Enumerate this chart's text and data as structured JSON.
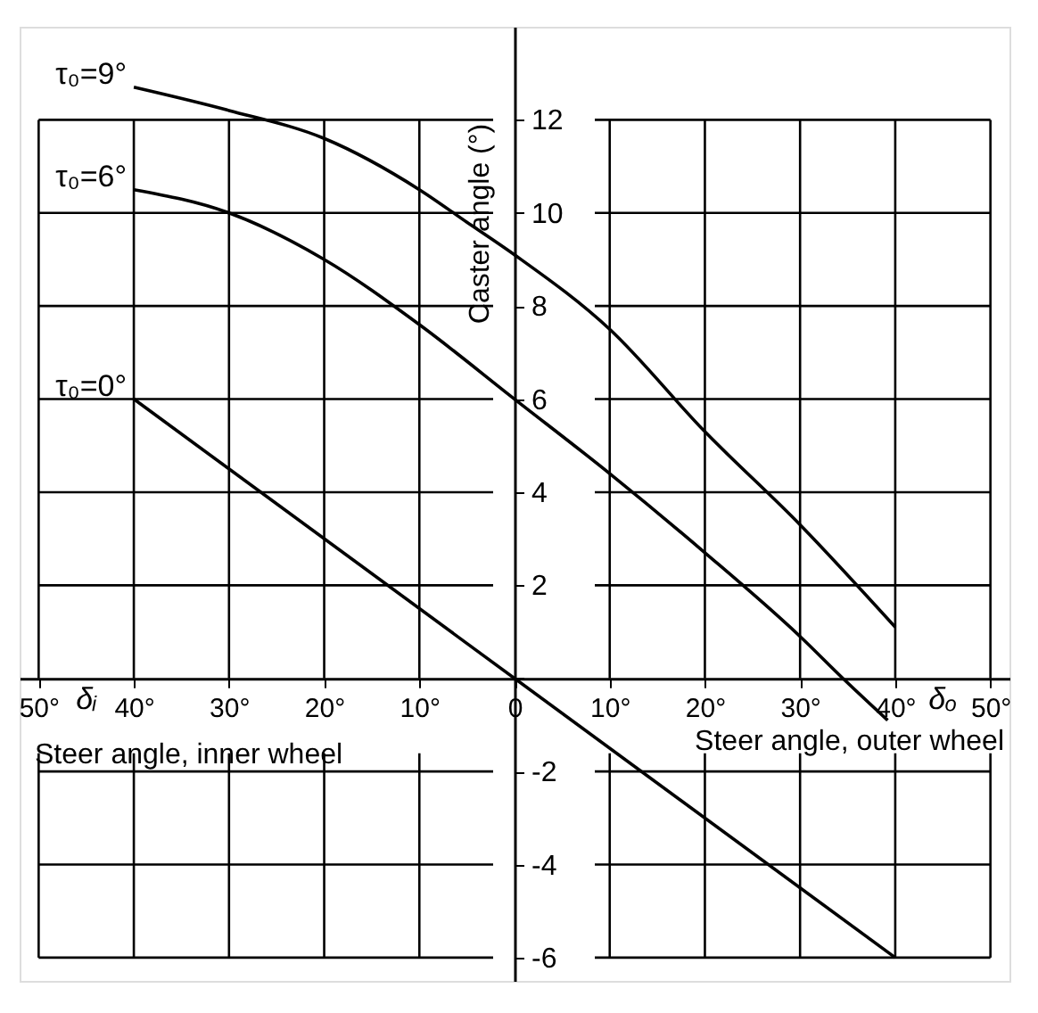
{
  "chart_data": {
    "type": "line",
    "xlabel": "Steer angle, inner wheel",
    "ylabel": "Caster angle (°)",
    "annotations": [
      "δᵢ",
      "δₒ",
      "Steer angle, outer wheel"
    ],
    "series": [
      {
        "name": "τ₀=9°",
        "color": "#000000",
        "x": [
          -40,
          -30,
          -20,
          -10,
          -5,
          0,
          10,
          20,
          30,
          40
        ],
        "values": [
          12.7,
          12.2,
          11.6,
          10.5,
          9.8,
          9.1,
          7.5,
          5.3,
          3.3,
          1.1
        ]
      },
      {
        "name": "τ₀=6°",
        "color": "#000000",
        "x": [
          -40,
          -30,
          -20,
          -10,
          0,
          10,
          20,
          30,
          34.5,
          39.2
        ],
        "values": [
          10.5,
          10.0,
          9.0,
          7.6,
          6.0,
          4.4,
          2.7,
          0.9,
          0,
          -0.9
        ]
      },
      {
        "name": "τ₀=0°",
        "color": "#000000",
        "x": [
          -40,
          40
        ],
        "values": [
          6,
          -6
        ]
      }
    ],
    "xlim": [
      -52,
      52
    ],
    "ylim": [
      -6.5,
      14
    ],
    "xticks": [
      {
        "value": -50,
        "label": "50°"
      },
      {
        "value": -40,
        "label": "40°"
      },
      {
        "value": -30,
        "label": "30°"
      },
      {
        "value": -20,
        "label": "20°"
      },
      {
        "value": -10,
        "label": "10°"
      },
      0,
      {
        "value": 10,
        "label": "10°"
      },
      {
        "value": 20,
        "label": "20°"
      },
      {
        "value": 30,
        "label": "30°"
      },
      {
        "value": 40,
        "label": "40°"
      },
      {
        "value": 50,
        "label": "50°"
      }
    ],
    "yticks": [
      -6,
      -4,
      -2,
      {
        "value": 0,
        "label": null
      },
      2,
      4,
      6,
      8,
      10,
      12
    ],
    "grid": true,
    "marker": "none",
    "line_style": "solid"
  }
}
